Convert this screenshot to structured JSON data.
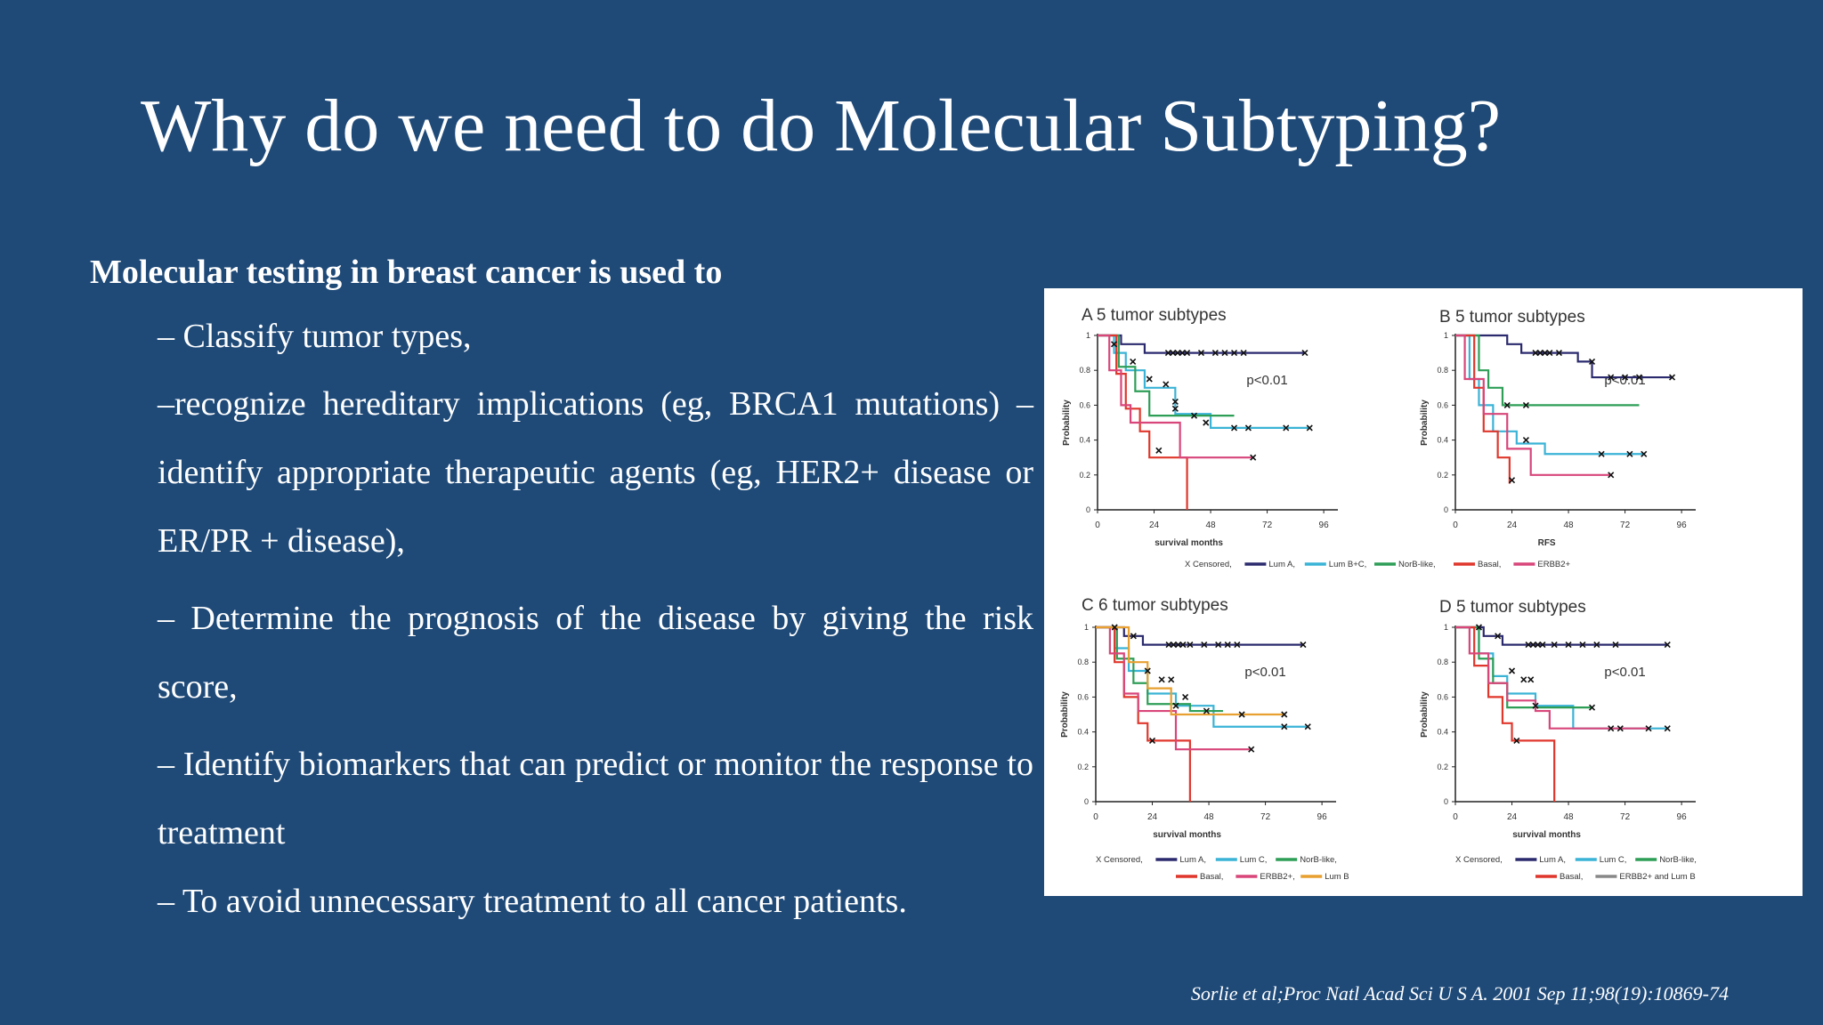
{
  "slide": {
    "title": "Why do we need to do Molecular Subtyping?",
    "intro": "Molecular testing in breast cancer is used to",
    "bullets": [
      "– Classify tumor types,",
      "–recognize hereditary implications (eg, BRCA1 mutations) – identify appropriate therapeutic agents (eg, HER2+ disease or ER/PR + disease),",
      "– Determine the prognosis of the disease by giving the risk score,",
      "– Identify biomarkers that can predict or monitor the response to treatment",
      "– To avoid unnecessary treatment to all cancer patients."
    ],
    "citation": "Sorlie et al;Proc Natl Acad Sci U S A. 2001 Sep 11;98(19):10869-74"
  },
  "colors": {
    "background": "#1f4a78",
    "Lum A": "#2b2a6e",
    "Lum B+C": "#3ab3d6",
    "Lum C": "#3ab3d6",
    "NorB-like": "#2e9e57",
    "Basal": "#e0372c",
    "ERBB2+": "#d8467a",
    "Lum B": "#e8a030"
  },
  "chart_data": [
    {
      "type": "line",
      "panel": "A",
      "title": "5 tumor subtypes",
      "xlabel": "survival months",
      "ylabel": "Probability",
      "xlim": [
        0,
        102
      ],
      "ylim": [
        0,
        1
      ],
      "xticks": [
        "0",
        "24",
        "48",
        "72",
        "96"
      ],
      "yticks": [
        "0",
        "0.2",
        "0.4",
        "0.6",
        "0.8",
        "1"
      ],
      "annotation": "p<0.01",
      "legend": [
        "X Censored,",
        "Lum A,",
        "Lum B+C,",
        "NorB-like,",
        "Basal,",
        "ERBB2+"
      ],
      "series": [
        {
          "name": "Lum A",
          "color": "#2b2a6e",
          "x": [
            0,
            10,
            10,
            20,
            20,
            28,
            28,
            50,
            88
          ],
          "y": [
            1,
            1,
            0.95,
            0.95,
            0.9,
            0.9,
            0.9,
            0.9,
            0.9
          ]
        },
        {
          "name": "Lum B+C",
          "color": "#3ab3d6",
          "x": [
            0,
            7,
            7,
            12,
            12,
            20,
            20,
            33,
            33,
            48,
            48,
            90
          ],
          "y": [
            1,
            1,
            0.9,
            0.9,
            0.8,
            0.8,
            0.7,
            0.7,
            0.55,
            0.55,
            0.47,
            0.47
          ]
        },
        {
          "name": "NorB-like",
          "color": "#2e9e57",
          "x": [
            0,
            9,
            9,
            16,
            16,
            22,
            22,
            58
          ],
          "y": [
            1,
            1,
            0.82,
            0.82,
            0.68,
            0.68,
            0.54,
            0.54
          ]
        },
        {
          "name": "Basal",
          "color": "#e0372c",
          "x": [
            0,
            8,
            8,
            12,
            12,
            18,
            18,
            22,
            22,
            38,
            38
          ],
          "y": [
            1,
            1,
            0.78,
            0.78,
            0.58,
            0.58,
            0.45,
            0.45,
            0.3,
            0.3,
            0
          ]
        },
        {
          "name": "ERBB2+",
          "color": "#d8467a",
          "x": [
            0,
            5,
            5,
            10,
            10,
            14,
            14,
            35,
            35,
            66
          ],
          "y": [
            1,
            1,
            0.8,
            0.8,
            0.6,
            0.6,
            0.5,
            0.5,
            0.3,
            0.3
          ]
        }
      ],
      "censored": [
        [
          7,
          0.95
        ],
        [
          30,
          0.9
        ],
        [
          32,
          0.9
        ],
        [
          34,
          0.9
        ],
        [
          36,
          0.9
        ],
        [
          38,
          0.9
        ],
        [
          44,
          0.9
        ],
        [
          50,
          0.9
        ],
        [
          54,
          0.9
        ],
        [
          58,
          0.9
        ],
        [
          62,
          0.9
        ],
        [
          88,
          0.9
        ],
        [
          15,
          0.85
        ],
        [
          22,
          0.75
        ],
        [
          29,
          0.72
        ],
        [
          33,
          0.62
        ],
        [
          46,
          0.5
        ],
        [
          58,
          0.47
        ],
        [
          64,
          0.47
        ],
        [
          80,
          0.47
        ],
        [
          90,
          0.47
        ],
        [
          33,
          0.58
        ],
        [
          41,
          0.54
        ],
        [
          26,
          0.34
        ],
        [
          66,
          0.3
        ]
      ]
    },
    {
      "type": "line",
      "panel": "B",
      "title": "5 tumor subtypes",
      "xlabel": "RFS",
      "ylabel": "Probability",
      "xlim": [
        0,
        102
      ],
      "ylim": [
        0,
        1
      ],
      "xticks": [
        "0",
        "24",
        "48",
        "72",
        "96"
      ],
      "yticks": [
        "0",
        "0.2",
        "0.4",
        "0.6",
        "0.8",
        "1"
      ],
      "annotation": "p<0.01",
      "series": [
        {
          "name": "Lum A",
          "color": "#2b2a6e",
          "x": [
            0,
            22,
            22,
            28,
            28,
            52,
            52,
            58,
            58,
            92
          ],
          "y": [
            1,
            1,
            0.95,
            0.95,
            0.9,
            0.9,
            0.85,
            0.85,
            0.76,
            0.76
          ]
        },
        {
          "name": "Lum B+C",
          "color": "#3ab3d6",
          "x": [
            0,
            6,
            6,
            10,
            10,
            16,
            16,
            26,
            26,
            38,
            38,
            80
          ],
          "y": [
            1,
            1,
            0.75,
            0.75,
            0.6,
            0.6,
            0.45,
            0.45,
            0.38,
            0.38,
            0.32,
            0.32
          ]
        },
        {
          "name": "NorB-like",
          "color": "#2e9e57",
          "x": [
            0,
            10,
            10,
            14,
            14,
            20,
            20,
            78
          ],
          "y": [
            1,
            1,
            0.8,
            0.8,
            0.7,
            0.7,
            0.6,
            0.6
          ]
        },
        {
          "name": "Basal",
          "color": "#e0372c",
          "x": [
            0,
            8,
            8,
            12,
            12,
            18,
            18,
            23,
            23
          ],
          "y": [
            1,
            1,
            0.7,
            0.7,
            0.45,
            0.45,
            0.3,
            0.3,
            0.15
          ]
        },
        {
          "name": "ERBB2+",
          "color": "#d8467a",
          "x": [
            0,
            4,
            4,
            12,
            12,
            22,
            22,
            32,
            32,
            66
          ],
          "y": [
            1,
            1,
            0.75,
            0.75,
            0.55,
            0.55,
            0.35,
            0.35,
            0.2,
            0.2
          ]
        }
      ],
      "censored": [
        [
          34,
          0.9
        ],
        [
          36,
          0.9
        ],
        [
          38,
          0.9
        ],
        [
          40,
          0.9
        ],
        [
          44,
          0.9
        ],
        [
          58,
          0.85
        ],
        [
          66,
          0.76
        ],
        [
          72,
          0.76
        ],
        [
          78,
          0.76
        ],
        [
          92,
          0.76
        ],
        [
          22,
          0.6
        ],
        [
          30,
          0.6
        ],
        [
          30,
          0.4
        ],
        [
          62,
          0.32
        ],
        [
          74,
          0.32
        ],
        [
          80,
          0.32
        ],
        [
          24,
          0.17
        ],
        [
          66,
          0.2
        ]
      ]
    },
    {
      "type": "line",
      "panel": "C",
      "title": "6 tumor subtypes",
      "xlabel": "survival months",
      "ylabel": "Probability",
      "xlim": [
        0,
        102
      ],
      "ylim": [
        0,
        1
      ],
      "xticks": [
        "0",
        "24",
        "48",
        "72",
        "96"
      ],
      "yticks": [
        "0",
        "0.2",
        "0.4",
        "0.6",
        "0.8",
        "1"
      ],
      "annotation": "p<0.01",
      "legend": [
        "X Censored,",
        "Lum A,",
        "Lum C,",
        "NorB-like,",
        "Basal,",
        "ERBB2+,",
        "Lum B"
      ],
      "series": [
        {
          "name": "Lum A",
          "color": "#2b2a6e",
          "x": [
            0,
            12,
            12,
            20,
            20,
            28,
            28,
            88
          ],
          "y": [
            1,
            1,
            0.95,
            0.95,
            0.9,
            0.9,
            0.9,
            0.9
          ]
        },
        {
          "name": "Lum C",
          "color": "#3ab3d6",
          "x": [
            0,
            8,
            8,
            14,
            14,
            22,
            22,
            34,
            34,
            50,
            50,
            90
          ],
          "y": [
            1,
            1,
            0.88,
            0.88,
            0.75,
            0.75,
            0.62,
            0.62,
            0.55,
            0.55,
            0.43,
            0.43
          ]
        },
        {
          "name": "NorB-like",
          "color": "#2e9e57",
          "x": [
            0,
            9,
            9,
            16,
            16,
            22,
            22,
            40,
            40,
            54
          ],
          "y": [
            1,
            1,
            0.82,
            0.82,
            0.68,
            0.68,
            0.56,
            0.56,
            0.52,
            0.52
          ]
        },
        {
          "name": "Basal",
          "color": "#e0372c",
          "x": [
            0,
            8,
            8,
            12,
            12,
            18,
            18,
            22,
            22,
            40,
            40
          ],
          "y": [
            1,
            1,
            0.8,
            0.8,
            0.6,
            0.6,
            0.45,
            0.45,
            0.35,
            0.35,
            0
          ]
        },
        {
          "name": "ERBB2+",
          "color": "#d8467a",
          "x": [
            0,
            6,
            6,
            12,
            12,
            18,
            18,
            34,
            34,
            66
          ],
          "y": [
            1,
            1,
            0.85,
            0.85,
            0.62,
            0.62,
            0.52,
            0.52,
            0.3,
            0.3
          ]
        },
        {
          "name": "Lum B",
          "color": "#e8a030",
          "x": [
            0,
            14,
            14,
            22,
            22,
            32,
            32,
            80
          ],
          "y": [
            1,
            1,
            0.8,
            0.8,
            0.65,
            0.65,
            0.5,
            0.5
          ]
        }
      ],
      "censored": [
        [
          8,
          1
        ],
        [
          31,
          0.9
        ],
        [
          33,
          0.9
        ],
        [
          35,
          0.9
        ],
        [
          37,
          0.9
        ],
        [
          40,
          0.9
        ],
        [
          46,
          0.9
        ],
        [
          52,
          0.9
        ],
        [
          56,
          0.9
        ],
        [
          60,
          0.9
        ],
        [
          88,
          0.9
        ],
        [
          16,
          0.95
        ],
        [
          22,
          0.75
        ],
        [
          28,
          0.7
        ],
        [
          32,
          0.7
        ],
        [
          34,
          0.55
        ],
        [
          38,
          0.6
        ],
        [
          47,
          0.52
        ],
        [
          62,
          0.5
        ],
        [
          80,
          0.5
        ],
        [
          80,
          0.43
        ],
        [
          90,
          0.43
        ],
        [
          24,
          0.35
        ],
        [
          66,
          0.3
        ]
      ]
    },
    {
      "type": "line",
      "panel": "D",
      "title": "5 tumor subtypes",
      "xlabel": "survival months",
      "ylabel": "Probability",
      "xlim": [
        0,
        102
      ],
      "ylim": [
        0,
        1
      ],
      "xticks": [
        "0",
        "24",
        "48",
        "72",
        "96"
      ],
      "yticks": [
        "0",
        "0.2",
        "0.4",
        "0.6",
        "0.8",
        "1"
      ],
      "annotation": "p<0.01",
      "legend": [
        "X Censored,",
        "Lum A,",
        "Lum C,",
        "NorB-like,",
        "Basal,",
        "ERBB2+ and Lum B"
      ],
      "series": [
        {
          "name": "Lum A",
          "color": "#2b2a6e",
          "x": [
            0,
            12,
            12,
            20,
            20,
            28,
            28,
            90
          ],
          "y": [
            1,
            1,
            0.95,
            0.95,
            0.9,
            0.9,
            0.9,
            0.9
          ]
        },
        {
          "name": "Lum C",
          "color": "#3ab3d6",
          "x": [
            0,
            10,
            10,
            16,
            16,
            22,
            22,
            34,
            34,
            50,
            50,
            90
          ],
          "y": [
            1,
            1,
            0.85,
            0.85,
            0.72,
            0.72,
            0.62,
            0.62,
            0.55,
            0.55,
            0.42,
            0.42
          ]
        },
        {
          "name": "NorB-like",
          "color": "#2e9e57",
          "x": [
            0,
            10,
            10,
            16,
            16,
            22,
            22,
            58
          ],
          "y": [
            1,
            1,
            0.82,
            0.82,
            0.68,
            0.68,
            0.54,
            0.54
          ]
        },
        {
          "name": "Basal",
          "color": "#e0372c",
          "x": [
            0,
            8,
            8,
            14,
            14,
            20,
            20,
            24,
            24,
            42,
            42
          ],
          "y": [
            1,
            1,
            0.78,
            0.78,
            0.6,
            0.6,
            0.45,
            0.45,
            0.35,
            0.35,
            0
          ]
        },
        {
          "name": "ERBB2+ and Lum B",
          "color": "#d8467a",
          "x": [
            0,
            6,
            6,
            14,
            14,
            22,
            22,
            34,
            34,
            40,
            40,
            82
          ],
          "y": [
            1,
            1,
            0.85,
            0.85,
            0.68,
            0.68,
            0.58,
            0.58,
            0.52,
            0.52,
            0.42,
            0.42
          ]
        }
      ],
      "censored": [
        [
          10,
          1
        ],
        [
          31,
          0.9
        ],
        [
          33,
          0.9
        ],
        [
          35,
          0.9
        ],
        [
          37,
          0.9
        ],
        [
          42,
          0.9
        ],
        [
          48,
          0.9
        ],
        [
          54,
          0.9
        ],
        [
          60,
          0.9
        ],
        [
          68,
          0.9
        ],
        [
          90,
          0.9
        ],
        [
          18,
          0.95
        ],
        [
          24,
          0.75
        ],
        [
          29,
          0.7
        ],
        [
          32,
          0.7
        ],
        [
          34,
          0.55
        ],
        [
          58,
          0.54
        ],
        [
          66,
          0.42
        ],
        [
          70,
          0.42
        ],
        [
          82,
          0.42
        ],
        [
          90,
          0.42
        ],
        [
          26,
          0.35
        ]
      ]
    }
  ]
}
